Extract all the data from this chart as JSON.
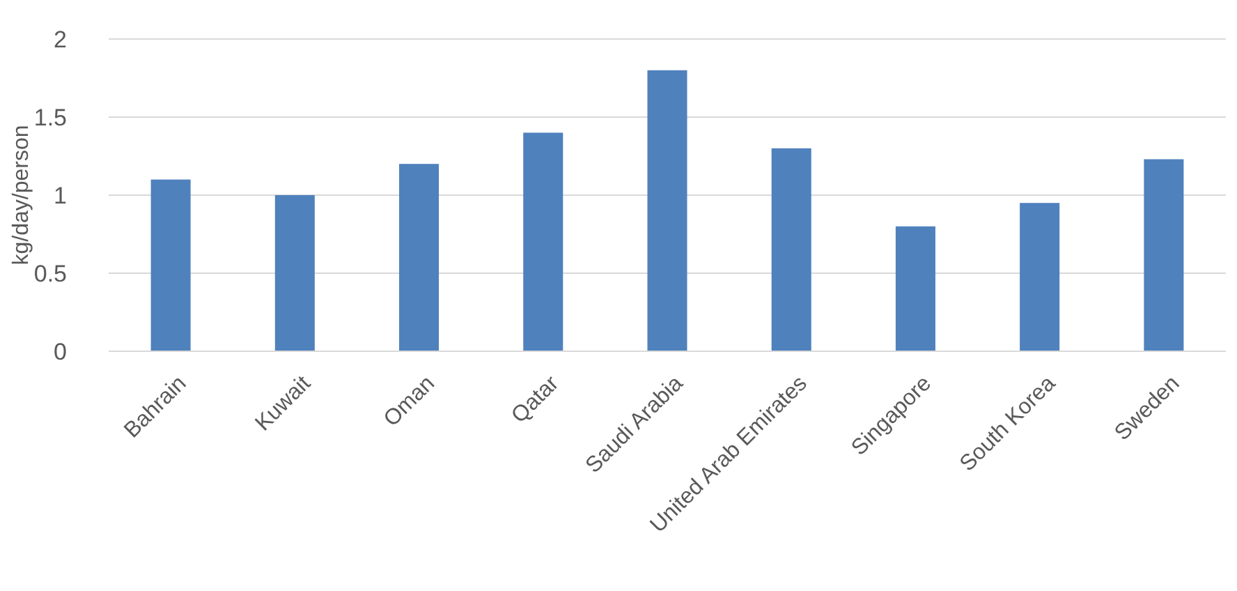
{
  "chart_data": {
    "type": "bar",
    "ylabel": "kg/day/person",
    "categories": [
      "Bahrain",
      "Kuwait",
      "Oman",
      "Qatar",
      "Saudi Arabia",
      "United Arab Emirates",
      "Singapore",
      "South Korea",
      "Sweden"
    ],
    "values": [
      1.1,
      1.0,
      1.2,
      1.4,
      1.8,
      1.3,
      0.8,
      0.95,
      1.23
    ],
    "color": "#4f81bd",
    "ylim": [
      0,
      2
    ],
    "yticks": [
      0,
      0.5,
      1,
      1.5,
      2
    ],
    "grid": "y"
  }
}
